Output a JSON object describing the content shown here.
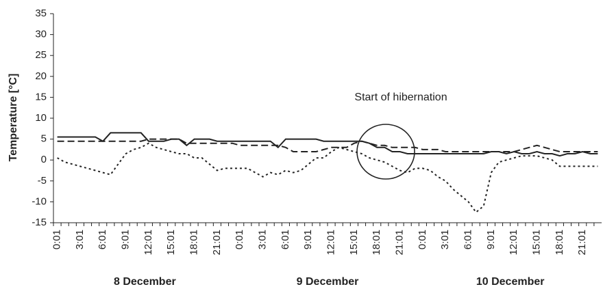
{
  "chart_data": {
    "type": "line",
    "y_label": "Temperature [°C]",
    "annotation": "Start of hibernation",
    "categories": [
      "0:01",
      null,
      null,
      "3:01",
      null,
      null,
      "6:01",
      null,
      null,
      "9:01",
      null,
      null,
      "12:01",
      null,
      null,
      "15:01",
      null,
      null,
      "18:01",
      null,
      null,
      "21:01",
      null,
      null,
      "0:01",
      null,
      null,
      "3:01",
      null,
      null,
      "6:01",
      null,
      null,
      "9:01",
      null,
      null,
      "12:01",
      null,
      null,
      "15:01",
      null,
      null,
      "18:01",
      null,
      null,
      "21:01",
      null,
      null,
      "0:01",
      null,
      null,
      "3:01",
      null,
      null,
      "6:01",
      null,
      null,
      "9:01",
      null,
      null,
      "12:01",
      null,
      null,
      "15:01",
      null,
      null,
      "18:01",
      null,
      null,
      "21:01",
      null,
      null
    ],
    "day_labels": [
      "8 December",
      "9 December",
      "10 December"
    ],
    "ylim": [
      -15,
      35
    ],
    "yticks": [
      -15,
      -10,
      -5,
      0,
      5,
      10,
      15,
      20,
      25,
      30,
      35
    ],
    "series": [
      {
        "color": "#222222",
        "dash": "solid",
        "values": [
          5.5,
          5.5,
          5.5,
          5.5,
          5.5,
          5.5,
          4.5,
          6.5,
          6.5,
          6.5,
          6.5,
          6.5,
          4.5,
          4.5,
          4.5,
          5,
          5,
          3.5,
          5,
          5,
          5,
          4.5,
          4.5,
          4.5,
          4.5,
          4.5,
          4.5,
          4.5,
          4.5,
          3,
          5,
          5,
          5,
          5,
          5,
          4.5,
          4.5,
          4.5,
          4.5,
          4.5,
          4.5,
          4,
          3,
          3,
          2,
          2,
          1.5,
          1.5,
          1.5,
          1.5,
          1.5,
          1.5,
          1.5,
          1.5,
          1.5,
          1.5,
          1.5,
          2,
          2,
          1.5,
          2,
          1.5,
          1.5,
          2,
          1.5,
          1.5,
          1,
          1.5,
          1.5,
          2,
          1.5,
          1.5
        ]
      },
      {
        "color": "#222222",
        "dash": "dashed",
        "values": [
          4.5,
          4.5,
          4.5,
          4.5,
          4.5,
          4.5,
          4.5,
          4.5,
          4.5,
          4.5,
          4.5,
          4.5,
          5,
          5,
          5,
          5,
          5,
          4,
          4,
          4,
          4,
          4,
          4,
          4,
          3.5,
          3.5,
          3.5,
          3.5,
          3.5,
          3.5,
          3,
          2,
          2,
          2,
          2,
          2.5,
          3,
          3,
          3,
          4,
          4.5,
          4,
          3.5,
          3.5,
          3,
          3,
          3,
          3,
          2.5,
          2.5,
          2.5,
          2,
          2,
          2,
          2,
          2,
          2,
          2,
          2,
          2,
          2,
          2.5,
          3,
          3.5,
          3,
          2.5,
          2,
          2,
          2,
          2,
          2,
          2
        ]
      },
      {
        "color": "#222222",
        "dash": "dotted",
        "values": [
          0.5,
          -0.5,
          -1,
          -1.5,
          -2,
          -2.5,
          -3,
          -3.5,
          -1,
          1.5,
          2.5,
          3,
          4,
          3,
          2.5,
          2,
          1.5,
          1.5,
          0.5,
          0.5,
          -1,
          -2.5,
          -2,
          -2,
          -2,
          -2,
          -3,
          -4,
          -3,
          -3.5,
          -2.5,
          -3,
          -2.5,
          -1,
          0.5,
          0.5,
          2,
          3,
          2.5,
          2,
          1.5,
          0.5,
          0,
          -0.5,
          -1.5,
          -2.5,
          -3,
          -2,
          -2,
          -2.5,
          -4,
          -5,
          -7,
          -8.5,
          -10,
          -12.5,
          -11,
          -3,
          -0.5,
          0,
          0.5,
          1,
          1,
          1,
          0.5,
          0,
          -1.5,
          -1.5,
          -1.5,
          -1.5,
          -1.5,
          -1.5
        ]
      }
    ]
  }
}
